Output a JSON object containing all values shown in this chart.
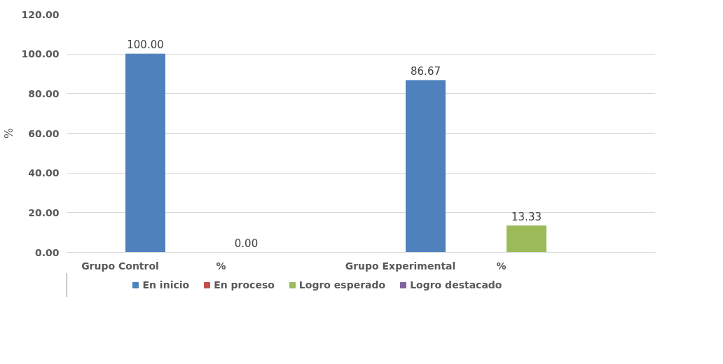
{
  "chart_data": {
    "type": "bar",
    "ylabel": "%",
    "categories": [
      "%",
      "%"
    ],
    "annotations": [
      "Grupo Control",
      "Grupo Experimental"
    ],
    "series": [
      {
        "name": "En inicio",
        "color": "#4f81bd",
        "values": [
          100,
          86.67
        ],
        "value_labels": [
          "100.00",
          "86.67"
        ]
      },
      {
        "name": "En proceso",
        "color": "#c0504d",
        "values": [
          null,
          null
        ]
      },
      {
        "name": "Logro esperado",
        "color": "#9bbb59",
        "values": [
          0,
          13.33
        ],
        "value_labels": [
          "0.00",
          "13.33"
        ]
      },
      {
        "name": "Logro destacado",
        "color": "#8064a2",
        "values": [
          null,
          null
        ]
      }
    ],
    "ylim": [
      0,
      120
    ],
    "yticks": [
      {
        "value": 0,
        "label": "0.00"
      },
      {
        "value": 20,
        "label": "20.00"
      },
      {
        "value": 40,
        "label": "40.00"
      },
      {
        "value": 60,
        "label": "60.00"
      },
      {
        "value": 80,
        "label": "80.00"
      },
      {
        "value": 100,
        "label": "100.00"
      },
      {
        "value": 120,
        "label": "120.00"
      }
    ],
    "grid": "y",
    "legend": "bottom"
  }
}
